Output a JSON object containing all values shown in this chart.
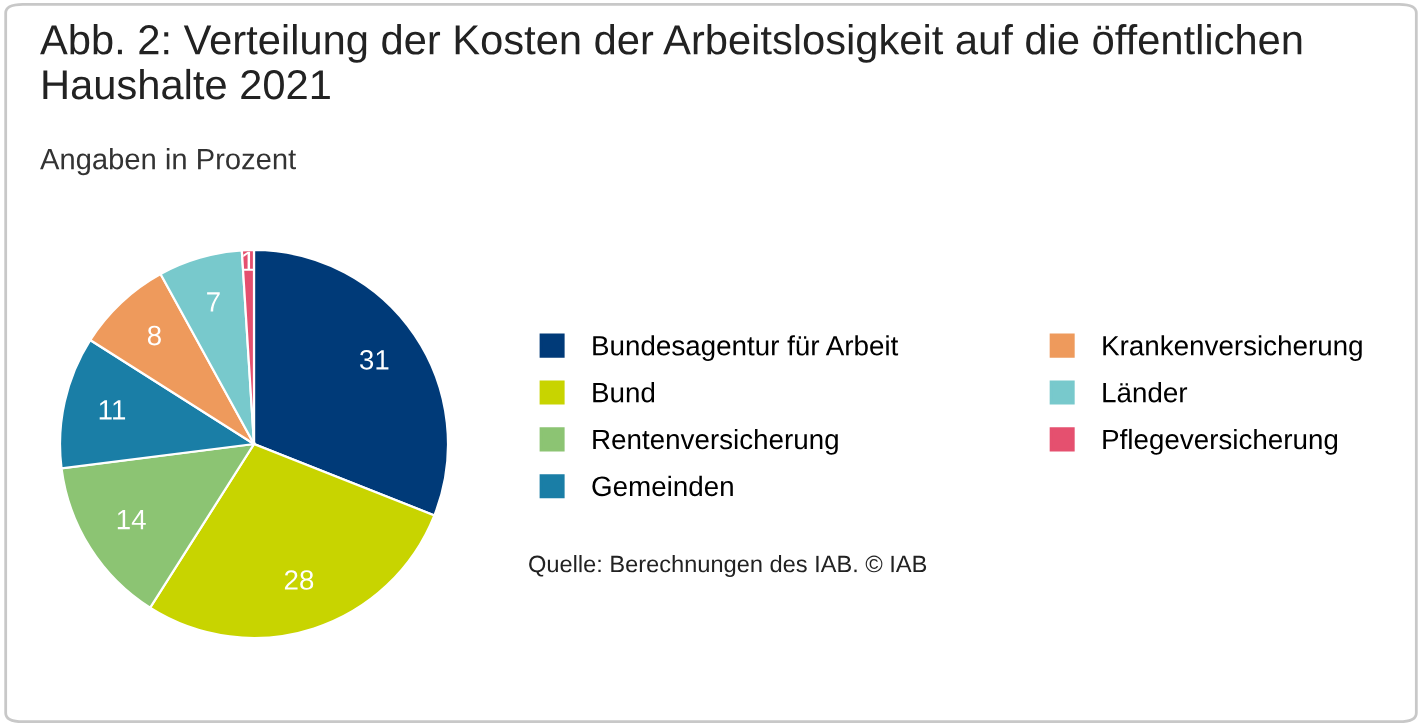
{
  "chart_data": {
    "type": "pie",
    "title": "Abb. 2: Verteilung der Kosten der Arbeitslosigkeit auf die öffentlichen Haushalte 2021",
    "subtitle": "Angaben in Prozent",
    "categories": [
      "Bundesagentur für Arbeit",
      "Bund",
      "Rentenversicherung",
      "Gemeinden",
      "Krankenversicherung",
      "Länder",
      "Pflegeversicherung"
    ],
    "values": [
      31,
      28,
      14,
      11,
      8,
      7,
      1
    ],
    "colors": [
      "#003a78",
      "#c8d400",
      "#8cc473",
      "#1a7ea6",
      "#ee9a5c",
      "#78c9cc",
      "#e5506f"
    ],
    "data_labels": true,
    "legend": "right",
    "annotations": [
      "Quelle: Berechnungen des IAB. © IAB"
    ]
  }
}
